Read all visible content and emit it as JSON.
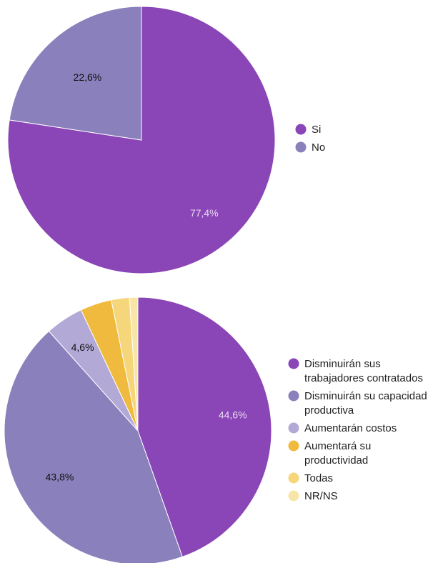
{
  "chart_data": [
    {
      "type": "pie",
      "title": "",
      "legend_position": "right",
      "start": "top",
      "direction": "clockwise",
      "series": [
        {
          "name": "Si",
          "value": 77.4,
          "label": "77,4%",
          "color": "#8a45b6",
          "legend": [
            "Si"
          ],
          "label_color": "#e9dcf3"
        },
        {
          "name": "No",
          "value": 22.6,
          "label": "22,6%",
          "color": "#8a80bb",
          "legend": [
            "No"
          ],
          "label_color": "#111111"
        }
      ]
    },
    {
      "type": "pie",
      "title": "",
      "legend_position": "right",
      "start": "top",
      "direction": "clockwise",
      "series": [
        {
          "name": "Disminuirán sus trabajadores contratados",
          "value": 44.6,
          "label": "44,6%",
          "color": "#8a45b6",
          "legend": [
            "Disminuirán sus",
            "trabajadores contratados"
          ],
          "label_color": "#e9dcf3"
        },
        {
          "name": "Disminuirán su capacidad productiva",
          "value": 43.8,
          "label": "43,8%",
          "color": "#8a80bb",
          "legend": [
            "Disminuirán su capacidad",
            "productiva"
          ],
          "label_color": "#111111"
        },
        {
          "name": "Aumentarán costos",
          "value": 4.6,
          "label": "4,6%",
          "color": "#b3a9d6",
          "legend": [
            "Aumentarán costos"
          ],
          "label_color": "#111111"
        },
        {
          "name": "Aumentará su productividad",
          "value": 3.8,
          "label": "",
          "color": "#efba3d",
          "legend": [
            "Aumentará su",
            "productividad"
          ],
          "label_color": "#111111"
        },
        {
          "name": "Todas",
          "value": 2.2,
          "label": "",
          "color": "#f5d67a",
          "legend": [
            "Todas"
          ],
          "label_color": "#111111"
        },
        {
          "name": "NR/NS",
          "value": 1.0,
          "label": "",
          "color": "#f8e6a8",
          "legend": [
            "NR/NS"
          ],
          "label_color": "#111111"
        }
      ]
    }
  ]
}
